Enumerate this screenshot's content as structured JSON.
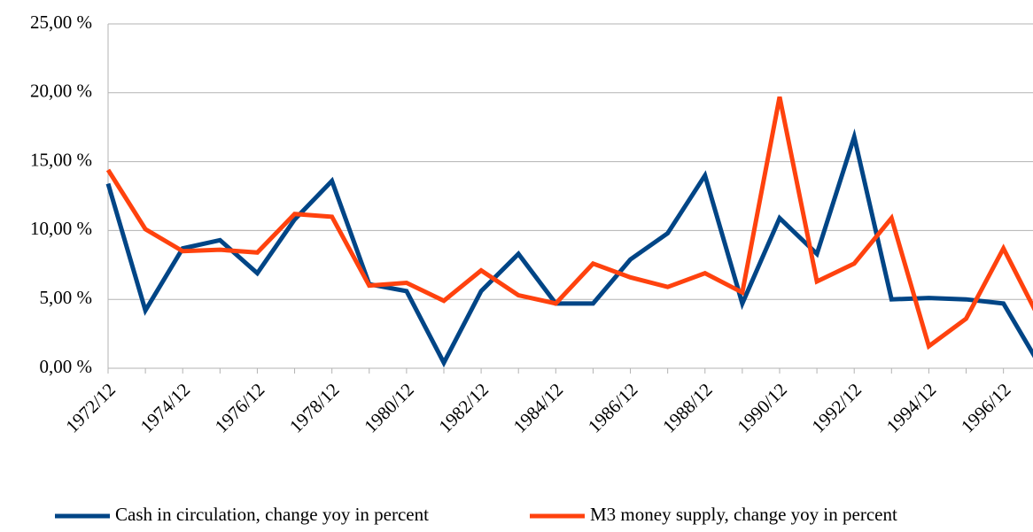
{
  "chart_data": {
    "type": "line",
    "categories": [
      "1972/12",
      null,
      "1974/12",
      null,
      "1976/12",
      null,
      "1978/12",
      null,
      "1980/12",
      null,
      "1982/12",
      null,
      "1984/12",
      null,
      "1986/12",
      null,
      "1988/12",
      null,
      "1990/12",
      null,
      "1992/12",
      null,
      "1994/12",
      null,
      "1996/12",
      null
    ],
    "series": [
      {
        "name": "Cash in circulation, change yoy in percent",
        "color": "#004586",
        "values": [
          13.4,
          4.2,
          8.7,
          9.3,
          6.9,
          10.8,
          13.6,
          6.1,
          5.6,
          0.4,
          5.6,
          8.3,
          4.7,
          4.7,
          7.9,
          9.8,
          14.0,
          4.7,
          10.9,
          8.3,
          16.8,
          5.0,
          5.1,
          5.0,
          4.7,
          0.1
        ]
      },
      {
        "name": "M3 money supply, change yoy in percent",
        "color": "#ff420e",
        "values": [
          14.4,
          10.1,
          8.5,
          8.6,
          8.4,
          11.2,
          11.0,
          6.0,
          6.2,
          4.9,
          7.1,
          5.3,
          4.7,
          7.6,
          6.6,
          5.9,
          6.9,
          5.5,
          19.7,
          6.3,
          7.6,
          10.9,
          1.6,
          3.6,
          8.7,
          3.4
        ]
      }
    ],
    "ylim": [
      0,
      25
    ],
    "yticks": [
      {
        "value": 0,
        "label": "0,00 %"
      },
      {
        "value": 5,
        "label": "5,00 %"
      },
      {
        "value": 10,
        "label": "10,00 %"
      },
      {
        "value": 15,
        "label": "15,00 %"
      },
      {
        "value": 20,
        "label": "20,00 %"
      },
      {
        "value": 25,
        "label": "25,00 %"
      }
    ],
    "grid": true,
    "legend": "bottom"
  }
}
